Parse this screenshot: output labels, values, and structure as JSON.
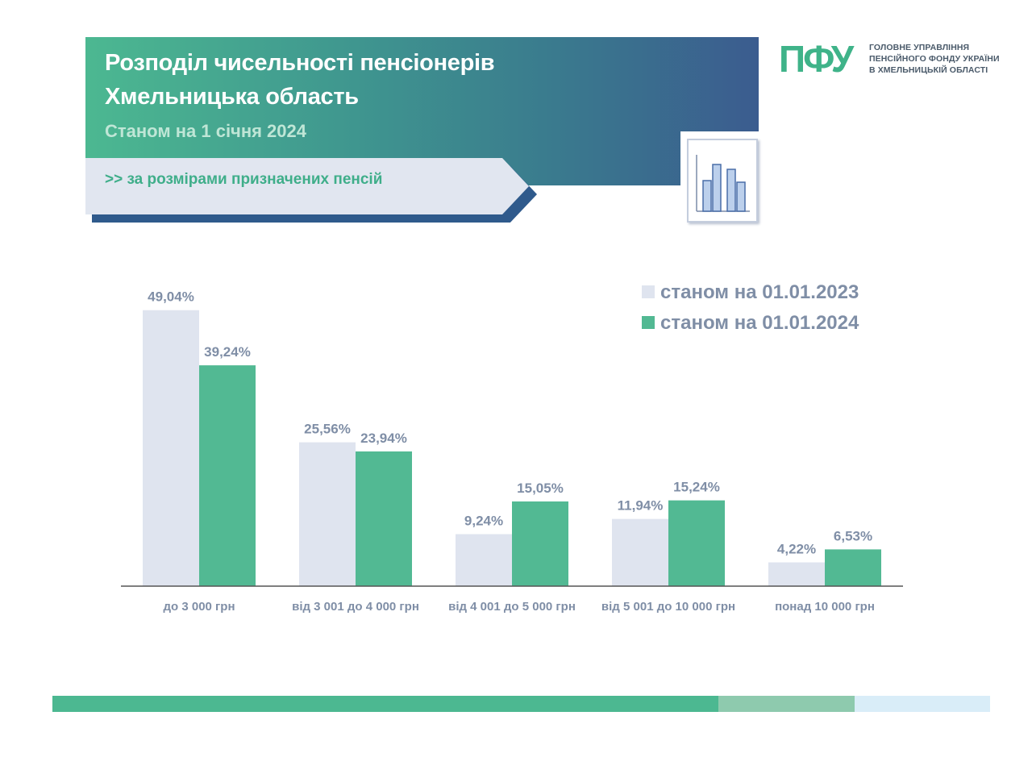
{
  "header": {
    "title_line1": "Розподіл чисельності пенсіонерів",
    "title_line2": "Хмельницька область",
    "subtitle": "Станом на 1 січня 2024",
    "banner": ">> за розмірами  призначених пенсій"
  },
  "logo": {
    "mark": "ПФУ",
    "caption_line1": "ГОЛОВНЕ УПРАВЛІННЯ",
    "caption_line2": "ПЕНСІЙНОГО ФОНДУ УКРАЇНИ",
    "caption_line3": "В ХМЕЛЬНИЦЬКІЙ ОБЛАСТІ"
  },
  "colors": {
    "series_2023": "#dfe4ef",
    "series_2024": "#52b993",
    "label_text": "#7f8ea6",
    "axis": "#555555"
  },
  "chart_data": {
    "type": "bar",
    "categories": [
      "до 3 000 грн",
      "від 3 001 до 4 000 грн",
      "від 4 001 до 5 000 грн",
      "від 5 001 до 10 000 грн",
      "понад 10 000 грн"
    ],
    "series": [
      {
        "name": "станом на 01.01.2023",
        "values": [
          49.04,
          25.56,
          9.24,
          11.94,
          4.22
        ],
        "labels": [
          "49,04%",
          "25,56%",
          "9,24%",
          "11,94%",
          "4,22%"
        ]
      },
      {
        "name": "станом на 01.01.2024",
        "values": [
          39.24,
          23.94,
          15.05,
          15.24,
          6.53
        ],
        "labels": [
          "39,24%",
          "23,94%",
          "15,05%",
          "15,24%",
          "6,53%"
        ]
      }
    ],
    "unit": "%",
    "ylim": [
      0,
      50
    ],
    "grid": false,
    "legend_position": "top-right"
  }
}
